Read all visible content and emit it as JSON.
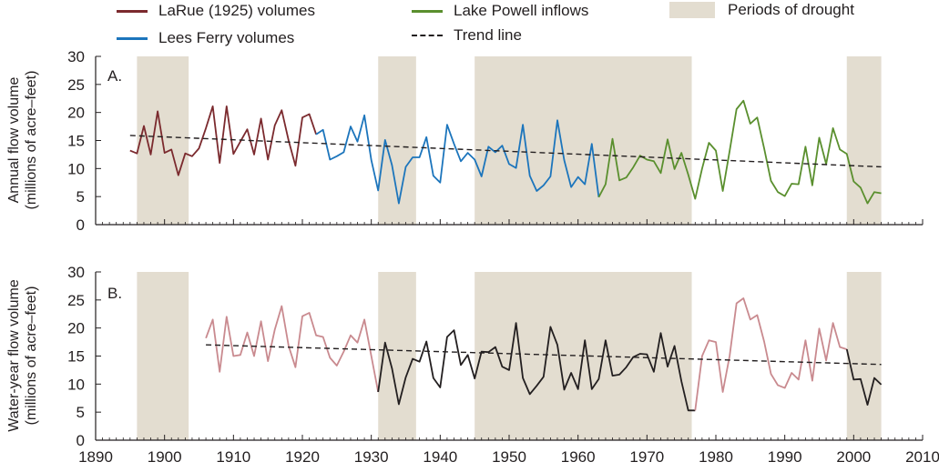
{
  "legend": {
    "larue": "LaRue (1925) volumes",
    "lees": "Lees Ferry volumes",
    "powell": "Lake Powell inflows",
    "trend": "Trend line",
    "drought": "Periods of drought"
  },
  "colors": {
    "larue": "#7b2a2e",
    "lees": "#1c75bc",
    "powell": "#5a8f2e",
    "wy_pink": "#c98a8f",
    "wy_black": "#231f20",
    "drought": "#e3ddd0"
  },
  "chart_data": [
    {
      "type": "line",
      "panel_label": "A.",
      "ylabel_line1": "Annual flow volume",
      "ylabel_line2": "(millions of acre–feet)",
      "xlim": [
        1890,
        2010
      ],
      "ylim": [
        0,
        30
      ],
      "yticks": [
        0,
        5,
        10,
        15,
        20,
        25,
        30
      ],
      "drought_periods": [
        [
          1896,
          1903.5
        ],
        [
          1931,
          1936.5
        ],
        [
          1945,
          1976.5
        ],
        [
          1999,
          2004
        ]
      ],
      "series": [
        {
          "name": "LaRue (1925) volumes",
          "x": [
            1895,
            1896,
            1897,
            1898,
            1899,
            1900,
            1901,
            1902,
            1903,
            1904,
            1905,
            1906,
            1907,
            1908,
            1909,
            1910,
            1911,
            1912,
            1913,
            1914,
            1915,
            1916,
            1917,
            1918,
            1919,
            1920,
            1921,
            1922
          ],
          "values": [
            13.2,
            12.7,
            17.6,
            12.5,
            20.2,
            12.8,
            13.4,
            8.8,
            12.7,
            12.2,
            13.6,
            17.2,
            21.1,
            11.0,
            21.1,
            12.6,
            14.8,
            17.0,
            12.5,
            18.9,
            11.6,
            17.7,
            20.4,
            15.0,
            10.5,
            19.1,
            19.7,
            16.1
          ]
        },
        {
          "name": "Lees Ferry volumes",
          "x": [
            1922,
            1923,
            1924,
            1925,
            1926,
            1927,
            1928,
            1929,
            1930,
            1931,
            1932,
            1933,
            1934,
            1935,
            1936,
            1937,
            1938,
            1939,
            1940,
            1941,
            1942,
            1943,
            1944,
            1945,
            1946,
            1947,
            1948,
            1949,
            1950,
            1951,
            1952,
            1953,
            1954,
            1955,
            1956,
            1957,
            1958,
            1959,
            1960,
            1961,
            1962,
            1963
          ],
          "values": [
            16.1,
            16.9,
            11.6,
            12.2,
            12.9,
            17.5,
            14.8,
            19.5,
            11.5,
            6.1,
            15.1,
            10.6,
            3.8,
            10.3,
            12.0,
            12.0,
            15.6,
            8.7,
            7.5,
            17.8,
            14.4,
            11.3,
            12.8,
            11.6,
            8.6,
            13.9,
            12.9,
            14.1,
            10.8,
            10.1,
            17.8,
            8.7,
            6.0,
            7.0,
            8.6,
            18.6,
            11.5,
            6.7,
            8.5,
            7.2,
            14.4,
            4.9
          ]
        },
        {
          "name": "Lake Powell inflows",
          "x": [
            1963,
            1964,
            1965,
            1966,
            1967,
            1968,
            1969,
            1970,
            1971,
            1972,
            1973,
            1974,
            1975,
            1976,
            1977,
            1978,
            1979,
            1980,
            1981,
            1982,
            1983,
            1984,
            1985,
            1986,
            1987,
            1988,
            1989,
            1990,
            1991,
            1992,
            1993,
            1994,
            1995,
            1996,
            1997,
            1998,
            1999,
            2000,
            2001,
            2002,
            2003,
            2004
          ],
          "values": [
            4.9,
            7.2,
            15.3,
            7.9,
            8.4,
            10.2,
            12.3,
            11.6,
            11.3,
            9.2,
            15.2,
            9.9,
            12.8,
            8.9,
            4.6,
            10.0,
            14.6,
            13.2,
            6.0,
            13.1,
            20.6,
            22.1,
            18.0,
            19.1,
            13.6,
            7.8,
            5.8,
            5.1,
            7.3,
            7.2,
            13.9,
            7.0,
            15.5,
            10.8,
            17.2,
            13.4,
            12.6,
            7.7,
            6.6,
            3.8,
            5.8,
            5.6
          ]
        }
      ],
      "trend": {
        "name": "Trend line",
        "x": [
          1895,
          2004
        ],
        "y": [
          15.9,
          10.3
        ]
      }
    },
    {
      "type": "line",
      "panel_label": "B.",
      "ylabel_line1": "Water-year flow volume",
      "ylabel_line2": "(millions of acre–feet)",
      "xlim": [
        1890,
        2010
      ],
      "ylim": [
        0,
        30
      ],
      "yticks": [
        0,
        5,
        10,
        15,
        20,
        25,
        30
      ],
      "xticks": [
        1890,
        1900,
        1910,
        1920,
        1930,
        1940,
        1950,
        1960,
        1970,
        1980,
        1990,
        2000,
        2010
      ],
      "drought_periods": [
        [
          1896,
          1903.5
        ],
        [
          1931,
          1936.5
        ],
        [
          1945,
          1976.5
        ],
        [
          1999,
          2004
        ]
      ],
      "series": [
        {
          "x": [
            1906,
            1907,
            1908,
            1909,
            1910,
            1911,
            1912,
            1913,
            1914,
            1915,
            1916,
            1917,
            1918,
            1919,
            1920,
            1921,
            1922,
            1923,
            1924,
            1925,
            1926,
            1927,
            1928,
            1929,
            1930,
            1931
          ],
          "values": [
            18.2,
            21.5,
            12.2,
            22.0,
            15.0,
            15.2,
            19.2,
            15.0,
            21.2,
            14.1,
            19.7,
            23.9,
            16.8,
            13.0,
            22.1,
            22.7,
            18.7,
            18.4,
            14.7,
            13.3,
            15.8,
            18.7,
            17.4,
            21.5,
            15.0,
            8.6
          ]
        },
        {
          "x": [
            1931,
            1932,
            1933,
            1934,
            1935,
            1936,
            1937,
            1938,
            1939,
            1940,
            1941,
            1942,
            1943,
            1944,
            1945,
            1946,
            1947,
            1948,
            1949,
            1950,
            1951,
            1952,
            1953,
            1954,
            1955,
            1956,
            1957,
            1958,
            1959,
            1960,
            1961,
            1962,
            1963,
            1964,
            1965,
            1966,
            1967,
            1968,
            1969,
            1970,
            1971,
            1972,
            1973,
            1974,
            1975,
            1976,
            1977
          ],
          "values": [
            8.6,
            17.4,
            12.8,
            6.4,
            11.2,
            14.5,
            14.0,
            17.6,
            11.1,
            9.4,
            18.4,
            19.6,
            13.4,
            15.2,
            11.0,
            15.8,
            15.7,
            16.6,
            13.1,
            12.5,
            20.9,
            11.1,
            8.2,
            9.7,
            11.3,
            20.2,
            17.0,
            9.0,
            12.0,
            9.1,
            17.8,
            9.1,
            10.9,
            17.8,
            11.5,
            11.7,
            13.0,
            14.8,
            15.4,
            15.3,
            12.2,
            19.1,
            13.1,
            16.8,
            10.5,
            5.3,
            5.3
          ]
        },
        {
          "x": [
            1977,
            1978,
            1979,
            1980,
            1981,
            1982,
            1983,
            1984,
            1985,
            1986,
            1987,
            1988,
            1989,
            1990,
            1991,
            1992,
            1993,
            1994,
            1995,
            1996,
            1997,
            1998,
            1999
          ],
          "values": [
            5.3,
            15.0,
            17.8,
            17.5,
            8.6,
            15.0,
            24.4,
            25.3,
            21.5,
            22.3,
            17.6,
            11.8,
            9.8,
            9.3,
            12.0,
            10.8,
            17.8,
            10.6,
            19.9,
            14.2,
            20.9,
            16.6,
            16.2
          ]
        },
        {
          "x": [
            1999,
            2000,
            2001,
            2002,
            2003,
            2004
          ],
          "values": [
            16.2,
            10.8,
            10.9,
            6.3,
            11.1,
            9.9
          ]
        }
      ],
      "trend": {
        "name": "Trend line",
        "x": [
          1906,
          2004
        ],
        "y": [
          17.0,
          13.5
        ]
      }
    }
  ]
}
